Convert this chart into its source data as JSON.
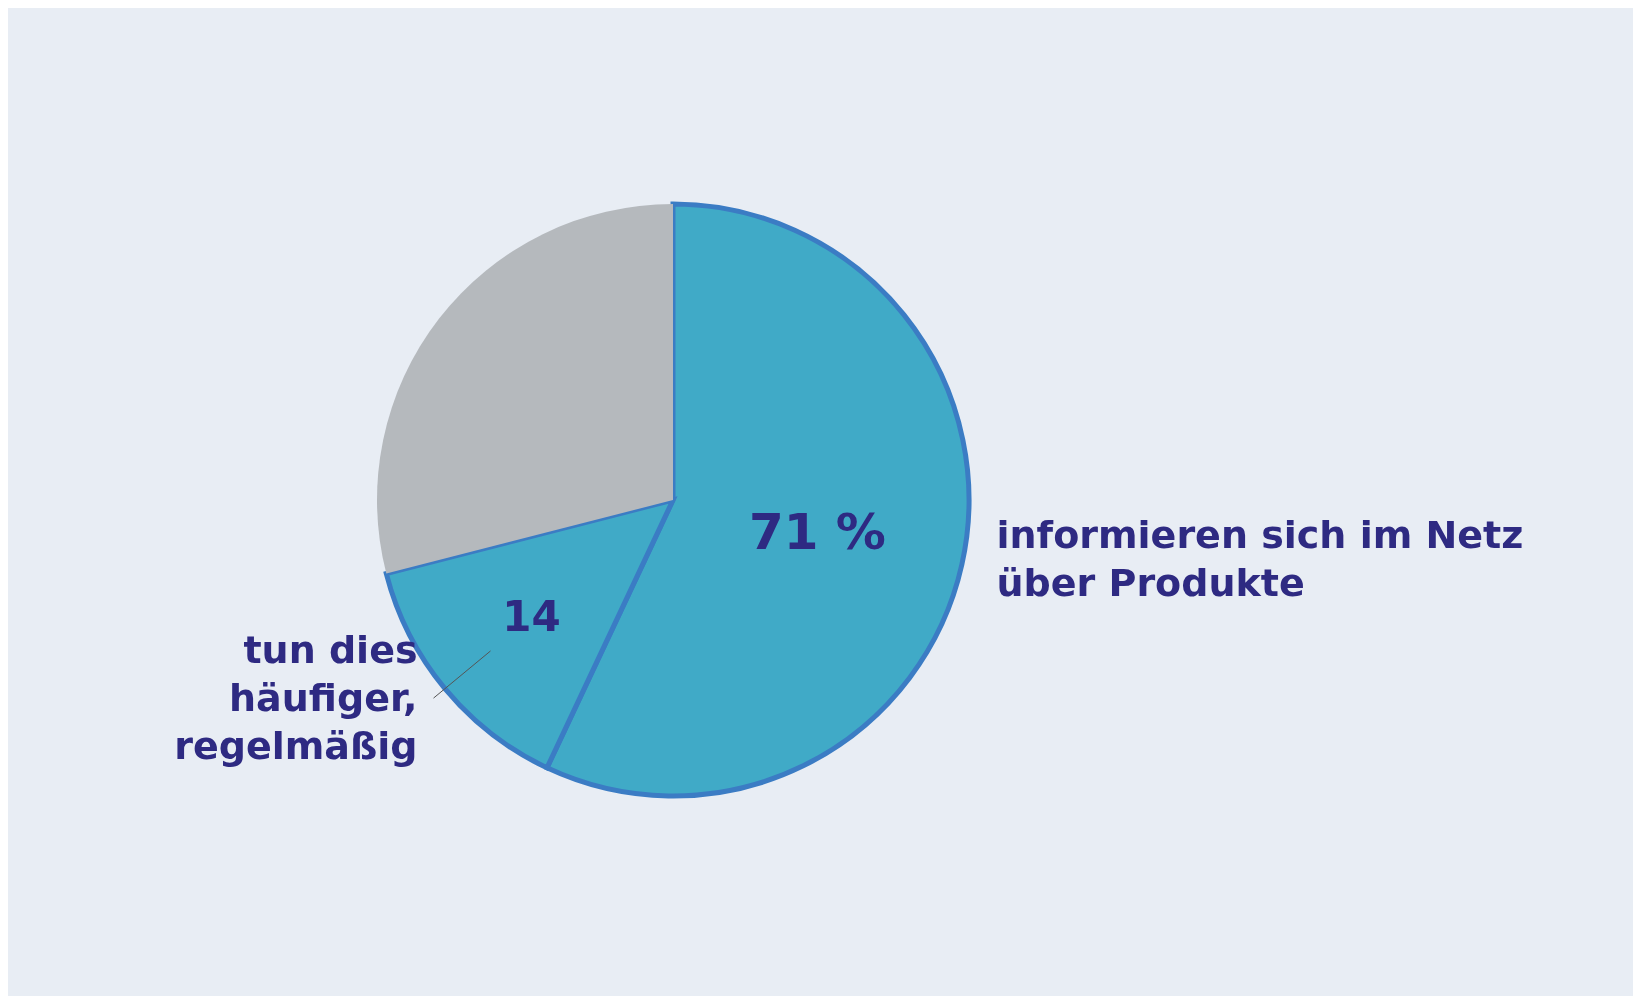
{
  "chart_data": {
    "type": "pie",
    "categories": [
      "informieren sich im Netz über Produkte",
      "tun dies häufiger, regelmäßig",
      null
    ],
    "values": [
      57,
      14,
      29
    ],
    "colors": [
      "#40aac7",
      "#40aac7",
      "#b5b9bd"
    ],
    "value_labels": [
      null,
      "14",
      null
    ],
    "annotations": [
      "71 %"
    ]
  }
}
